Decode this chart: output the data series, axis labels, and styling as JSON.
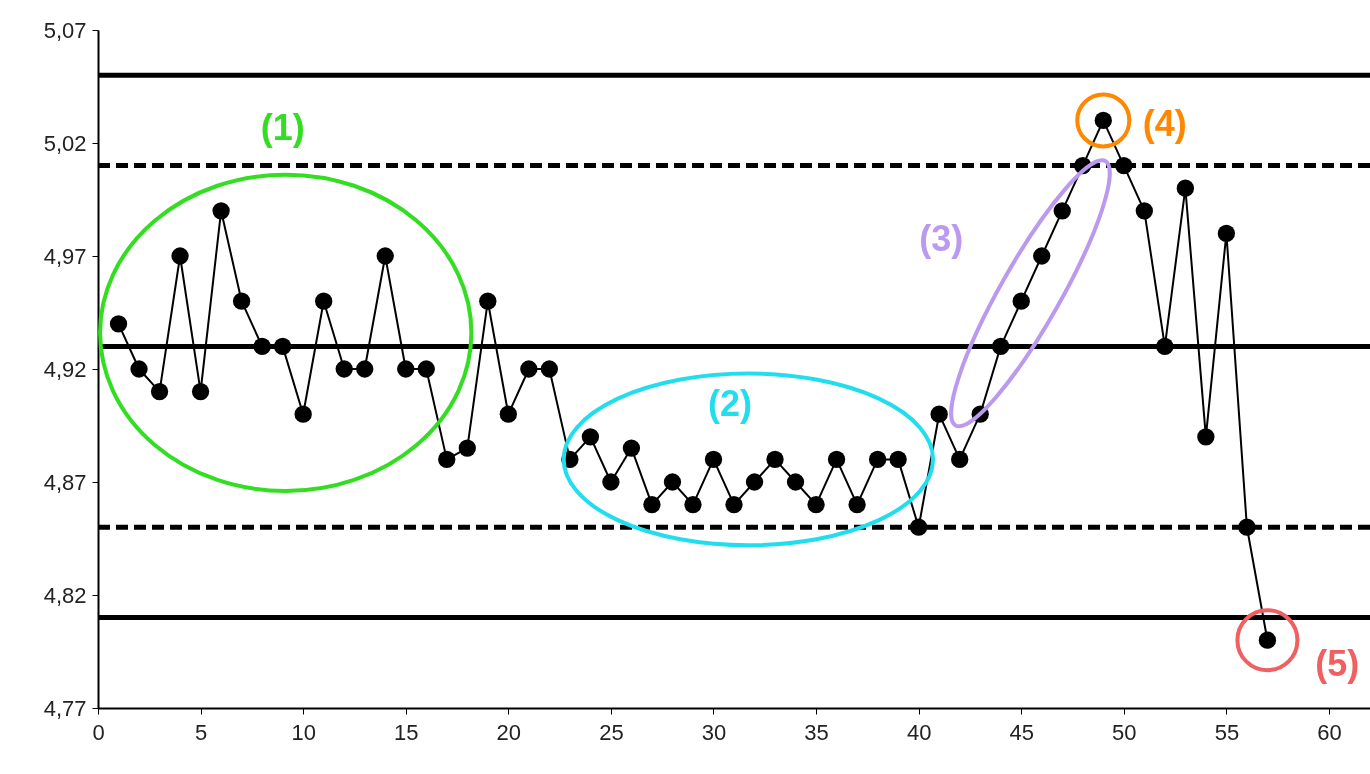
{
  "chart_data": {
    "type": "line",
    "marker": "circle",
    "line_style": "solid",
    "grid": false,
    "x": [
      1,
      2,
      3,
      4,
      5,
      6,
      7,
      8,
      9,
      10,
      11,
      12,
      13,
      14,
      15,
      16,
      17,
      18,
      19,
      20,
      21,
      22,
      23,
      24,
      25,
      26,
      27,
      28,
      29,
      30,
      31,
      32,
      33,
      34,
      35,
      36,
      37,
      38,
      39,
      40,
      41,
      42,
      43,
      44,
      45,
      46,
      47,
      48,
      49,
      50,
      51,
      52,
      53,
      54,
      55,
      56,
      57
    ],
    "series": [
      {
        "color": "#000000",
        "values": [
          4.94,
          4.92,
          4.91,
          4.97,
          4.91,
          4.99,
          4.95,
          4.93,
          4.93,
          4.9,
          4.95,
          4.92,
          4.92,
          4.97,
          4.92,
          4.92,
          4.88,
          4.885,
          4.95,
          4.9,
          4.92,
          4.92,
          4.88,
          4.89,
          4.87,
          4.885,
          4.86,
          4.87,
          4.86,
          4.88,
          4.86,
          4.87,
          4.88,
          4.87,
          4.86,
          4.88,
          4.86,
          4.88,
          4.88,
          4.85,
          4.9,
          4.88,
          4.9,
          4.93,
          4.95,
          4.97,
          4.99,
          5.01,
          5.03,
          5.01,
          4.99,
          4.93,
          5.0,
          4.89,
          4.98,
          4.85,
          4.8
        ]
      }
    ],
    "xlim": [
      0,
      62
    ],
    "xticks": [
      0,
      5,
      10,
      15,
      20,
      25,
      30,
      35,
      40,
      45,
      50,
      55,
      60
    ],
    "ylim": [
      4.77,
      5.07
    ],
    "yticks": [
      {
        "value": 4.77,
        "label": "4,77"
      },
      {
        "value": 4.82,
        "label": "4,82"
      },
      {
        "value": 4.87,
        "label": "4,87"
      },
      {
        "value": 4.92,
        "label": "4,92"
      },
      {
        "value": 4.97,
        "label": "4,97"
      },
      {
        "value": 5.02,
        "label": "5,02"
      },
      {
        "value": 5.07,
        "label": "5,07"
      }
    ],
    "ref_lines": [
      {
        "axis": "y",
        "value": 5.05,
        "color": "#000000",
        "line_style": "solid"
      },
      {
        "axis": "y",
        "value": 5.01,
        "color": "#000000",
        "line_style": "dashed"
      },
      {
        "axis": "y",
        "value": 4.93,
        "color": "#000000",
        "line_style": "solid"
      },
      {
        "axis": "y",
        "value": 4.85,
        "color": "#000000",
        "line_style": "dashed"
      },
      {
        "axis": "y",
        "value": 4.81,
        "color": "#000000",
        "line_style": "solid"
      }
    ],
    "annotations": [
      "(1)",
      "(2)",
      "(3)",
      {
        "text": "(4)",
        "x": 49,
        "y": 5.03
      },
      {
        "text": "(5)",
        "x": 57,
        "y": 4.8
      }
    ]
  }
}
